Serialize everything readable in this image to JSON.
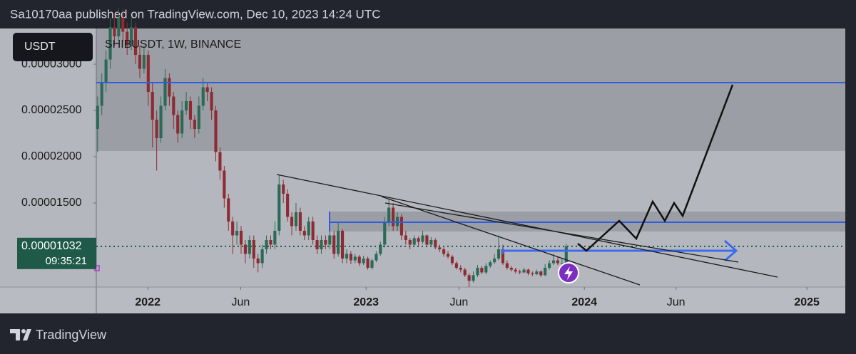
{
  "header": {
    "published": "Sa10170aa published on TradingView.com, Dec 10, 2023 14:24 UTC"
  },
  "chart_data": {
    "type": "candlestick",
    "currency": "USDT",
    "title": "SHIBUSDT, 1W, BINANCE",
    "up_color": "#2a6a57",
    "down_color": "#8e2a31",
    "ylim": [
      5.92e-06,
      3.385e-05
    ],
    "yticks": [
      {
        "value": 3e-05,
        "label": "0.00003000"
      },
      {
        "value": 2.5e-05,
        "label": "0.00002500"
      },
      {
        "value": 2e-05,
        "label": "0.00002000"
      },
      {
        "value": 1.5e-05,
        "label": "0.00001500"
      }
    ],
    "xlim": [
      -0.3,
      177.1
    ],
    "xticks": [
      {
        "value": 11.9,
        "label": "2022"
      },
      {
        "value": 33.9,
        "label": "Jun"
      },
      {
        "value": 63.6,
        "label": "2023"
      },
      {
        "value": 85.6,
        "label": "Jun"
      },
      {
        "value": 115.3,
        "label": "2024"
      },
      {
        "value": 137,
        "label": "Jun"
      },
      {
        "value": 168,
        "label": "2025"
      }
    ],
    "last_price_label": "0.00001032",
    "countdown": "09:35:21",
    "ohlc": [
      [
        2.3e-05,
        2.65e-05,
        2.05e-05,
        2.55e-05
      ],
      [
        2.55e-05,
        2.9e-05,
        2.45e-05,
        2.8e-05
      ],
      [
        2.8e-05,
        3.15e-05,
        2.7e-05,
        3.05e-05
      ],
      [
        3.05e-05,
        3.5e-05,
        2.95e-05,
        3.4e-05
      ],
      [
        3.4e-05,
        3.55e-05,
        3.2e-05,
        3.3e-05
      ],
      [
        3.3e-05,
        3.6e-05,
        3.25e-05,
        3.5e-05
      ],
      [
        3.5e-05,
        3.6e-05,
        3.25e-05,
        3.35e-05
      ],
      [
        3.35e-05,
        3.45e-05,
        3.1e-05,
        3.2e-05
      ],
      [
        3.2e-05,
        3.5e-05,
        3.15e-05,
        3.4e-05
      ],
      [
        3.4e-05,
        3.45e-05,
        3e-05,
        3.1e-05
      ],
      [
        3.1e-05,
        3.2e-05,
        2.85e-05,
        2.95e-05
      ],
      [
        2.95e-05,
        3.2e-05,
        2.9e-05,
        3.1e-05
      ],
      [
        3.1e-05,
        3.15e-05,
        2.55e-05,
        2.7e-05
      ],
      [
        2.7e-05,
        2.8e-05,
        2.1e-05,
        2.4e-05
      ],
      [
        2.4e-05,
        2.5e-05,
        1.85e-05,
        2.2e-05
      ],
      [
        2.2e-05,
        2.65e-05,
        2.15e-05,
        2.55e-05
      ],
      [
        2.55e-05,
        2.95e-05,
        2.5e-05,
        2.85e-05
      ],
      [
        2.85e-05,
        2.9e-05,
        2.55e-05,
        2.65e-05
      ],
      [
        2.65e-05,
        2.7e-05,
        2.3e-05,
        2.45e-05
      ],
      [
        2.45e-05,
        2.5e-05,
        2.15e-05,
        2.25e-05
      ],
      [
        2.25e-05,
        2.6e-05,
        2.2e-05,
        2.5e-05
      ],
      [
        2.5e-05,
        2.7e-05,
        2.45e-05,
        2.6e-05
      ],
      [
        2.6e-05,
        2.65e-05,
        2.3e-05,
        2.4e-05
      ],
      [
        2.4e-05,
        2.45e-05,
        2.2e-05,
        2.3e-05
      ],
      [
        2.3e-05,
        2.65e-05,
        2.25e-05,
        2.55e-05
      ],
      [
        2.55e-05,
        2.85e-05,
        2.5e-05,
        2.75e-05
      ],
      [
        2.75e-05,
        2.8e-05,
        2.6e-05,
        2.7e-05
      ],
      [
        2.7e-05,
        2.75e-05,
        2.4e-05,
        2.5e-05
      ],
      [
        2.5e-05,
        2.55e-05,
        1.95e-05,
        2.05e-05
      ],
      [
        2.05e-05,
        2.1e-05,
        1.75e-05,
        1.85e-05
      ],
      [
        1.85e-05,
        1.9e-05,
        1.45e-05,
        1.55e-05
      ],
      [
        1.55e-05,
        1.6e-05,
        1.2e-05,
        1.3e-05
      ],
      [
        1.3e-05,
        1.35e-05,
        9.5e-06,
        1.15e-05
      ],
      [
        1.15e-05,
        1.3e-05,
        1.05e-05,
        1.2e-05
      ],
      [
        1.2e-05,
        1.25e-05,
        9.5e-06,
        1.05e-05
      ],
      [
        1.05e-05,
        1.1e-05,
        8.5e-06,
        9.5e-06
      ],
      [
        9.5e-06,
        1.15e-05,
        9e-06,
        1.1e-05
      ],
      [
        1.1e-05,
        1.15e-05,
        8e-06,
        9e-06
      ],
      [
        9e-06,
        9.5e-06,
        7.5e-06,
        8.5e-06
      ],
      [
        8.5e-06,
        1.05e-05,
        8e-06,
        1e-05
      ],
      [
        1e-05,
        1.15e-05,
        9.5e-06,
        1.1e-05
      ],
      [
        1.1e-05,
        1.15e-05,
        1e-05,
        1.05e-05
      ],
      [
        1.05e-05,
        1.3e-05,
        1e-05,
        1.2e-05
      ],
      [
        1.2e-05,
        1.8e-05,
        1.15e-05,
        1.7e-05
      ],
      [
        1.7e-05,
        1.75e-05,
        1.5e-05,
        1.6e-05
      ],
      [
        1.6e-05,
        1.65e-05,
        1.3e-05,
        1.35e-05
      ],
      [
        1.35e-05,
        1.4e-05,
        1.15e-05,
        1.25e-05
      ],
      [
        1.25e-05,
        1.5e-05,
        1.2e-05,
        1.4e-05
      ],
      [
        1.4e-05,
        1.45e-05,
        1.15e-05,
        1.2e-05
      ],
      [
        1.2e-05,
        1.25e-05,
        1.1e-05,
        1.15e-05
      ],
      [
        1.15e-05,
        1.35e-05,
        1.1e-05,
        1.3e-05
      ],
      [
        1.3e-05,
        1.35e-05,
        1.05e-05,
        1.1e-05
      ],
      [
        1.1e-05,
        1.15e-05,
        9.5e-06,
        1e-05
      ],
      [
        1e-05,
        1.15e-05,
        9.5e-06,
        1.1e-05
      ],
      [
        1.1e-05,
        1.15e-05,
        1e-05,
        1.05e-05
      ],
      [
        1.05e-05,
        1.2e-05,
        1e-05,
        1.15e-05
      ],
      [
        1.15e-05,
        1.2e-05,
        9e-06,
        9.5e-06
      ],
      [
        9.5e-06,
        1.3e-05,
        9.2e-06,
        1.2e-05
      ],
      [
        1.2e-05,
        1.22e-05,
        8.5e-06,
        9e-06
      ],
      [
        9e-06,
        1e-05,
        8.5e-06,
        9.5e-06
      ],
      [
        9.5e-06,
        9.8e-06,
        8.4e-06,
        8.8e-06
      ],
      [
        8.8e-06,
        9.5e-06,
        8.5e-06,
        9.2e-06
      ],
      [
        9.2e-06,
        9.4e-06,
        8.2e-06,
        8.5e-06
      ],
      [
        8.5e-06,
        9.3e-06,
        8.3e-06,
        9e-06
      ],
      [
        9e-06,
        9.2e-06,
        7.8e-06,
        8e-06
      ],
      [
        8e-06,
        9e-06,
        7.8e-06,
        8.8e-06
      ],
      [
        8.8e-06,
        9.8e-06,
        8.6e-06,
        9.5e-06
      ],
      [
        9.5e-06,
        1.08e-05,
        9.3e-06,
        1.05e-05
      ],
      [
        1.05e-05,
        1.35e-05,
        1.02e-05,
        1.3e-05
      ],
      [
        1.3e-05,
        1.55e-05,
        1.25e-05,
        1.45e-05
      ],
      [
        1.45e-05,
        1.5e-05,
        1.2e-05,
        1.25e-05
      ],
      [
        1.25e-05,
        1.4e-05,
        1.2e-05,
        1.35e-05
      ],
      [
        1.35e-05,
        1.38e-05,
        1.1e-05,
        1.15e-05
      ],
      [
        1.15e-05,
        1.2e-05,
        1.05e-05,
        1.1e-05
      ],
      [
        1.1e-05,
        1.12e-05,
        1e-05,
        1.05e-05
      ],
      [
        1.05e-05,
        1.15e-05,
        1.03e-05,
        1.12e-05
      ],
      [
        1.12e-05,
        1.14e-05,
        1.04e-05,
        1.08e-05
      ],
      [
        1.08e-05,
        1.2e-05,
        1.06e-05,
        1.15e-05
      ],
      [
        1.15e-05,
        1.16e-05,
        1.02e-05,
        1.05e-05
      ],
      [
        1.05e-05,
        1.13e-05,
        1.03e-05,
        1.1e-05
      ],
      [
        1.1e-05,
        1.12e-05,
        1e-05,
        1.02e-05
      ],
      [
        1.02e-05,
        1.05e-05,
        9.7e-06,
        1e-05
      ],
      [
        1e-05,
        1.02e-05,
        9.2e-06,
        9.5e-06
      ],
      [
        9.5e-06,
        9.8e-06,
        9e-06,
        9.2e-06
      ],
      [
        9.2e-06,
        9.4e-06,
        8.3e-06,
        8.5e-06
      ],
      [
        8.5e-06,
        8.7e-06,
        7.8e-06,
        8e-06
      ],
      [
        8e-06,
        8.3e-06,
        7.5e-06,
        7.8e-06
      ],
      [
        7.8e-06,
        8e-06,
        7e-06,
        7.2e-06
      ],
      [
        7.2e-06,
        7.4e-06,
        5.9e-06,
        6.6e-06
      ],
      [
        6.6e-06,
        7.6e-06,
        6.4e-06,
        7.2e-06
      ],
      [
        7.2e-06,
        8.3e-06,
        7e-06,
        8e-06
      ],
      [
        8e-06,
        8.2e-06,
        7.3e-06,
        7.5e-06
      ],
      [
        7.5e-06,
        8.5e-06,
        7.3e-06,
        8.2e-06
      ],
      [
        8.2e-06,
        8.8e-06,
        8e-06,
        8.6e-06
      ],
      [
        8.6e-06,
        9.5e-06,
        8.4e-06,
        9e-06
      ],
      [
        9e-06,
        1.15e-05,
        8.8e-06,
        1e-05
      ],
      [
        1e-05,
        1.05e-05,
        8.3e-06,
        8.5e-06
      ],
      [
        8.5e-06,
        8.8e-06,
        7.8e-06,
        8e-06
      ],
      [
        8e-06,
        8.2e-06,
        7.6e-06,
        7.8e-06
      ],
      [
        7.8e-06,
        8e-06,
        7.4e-06,
        7.6e-06
      ],
      [
        7.6e-06,
        7.8e-06,
        7.3e-06,
        7.5e-06
      ],
      [
        7.5e-06,
        8e-06,
        7.4e-06,
        7.8e-06
      ],
      [
        7.8e-06,
        7.9e-06,
        7.2e-06,
        7.4e-06
      ],
      [
        7.4e-06,
        7.6e-06,
        7.1e-06,
        7.3e-06
      ],
      [
        7.3e-06,
        7.8e-06,
        7.2e-06,
        7.6e-06
      ],
      [
        7.6e-06,
        7.7e-06,
        7e-06,
        7.2e-06
      ],
      [
        7.2e-06,
        8.4e-06,
        7.1e-06,
        8e-06
      ],
      [
        8e-06,
        8.8e-06,
        7.8e-06,
        8.5e-06
      ],
      [
        8.5e-06,
        9.5e-06,
        8.3e-06,
        8.8e-06
      ],
      [
        8.8e-06,
        9.2e-06,
        8.3e-06,
        8.5e-06
      ],
      [
        8.5e-06,
        9e-06,
        8.2e-06,
        8.5e-06
      ],
      [
        8.5e-06,
        1.06e-05,
        8.4e-06,
        1.032e-05
      ]
    ]
  },
  "footer": {
    "brand": "TradingView"
  }
}
